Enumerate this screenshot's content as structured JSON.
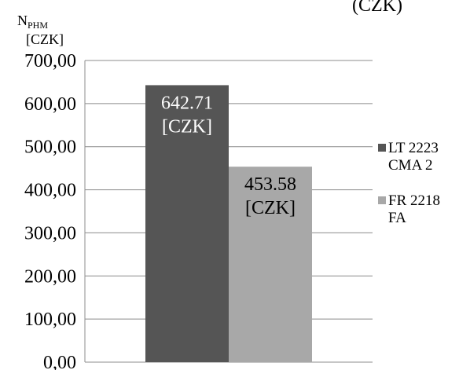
{
  "chart_data": {
    "type": "bar",
    "title": "",
    "title_fragment": "(CZK)",
    "ylabel": {
      "main": "N",
      "subscript": "PHM",
      "unit": "[CZK]"
    },
    "xlabel": "",
    "ylim": [
      0,
      700
    ],
    "y_ticks": [
      {
        "value": 0,
        "label": "0,00"
      },
      {
        "value": 100,
        "label": "100,00"
      },
      {
        "value": 200,
        "label": "200,00"
      },
      {
        "value": 300,
        "label": "300,00"
      },
      {
        "value": 400,
        "label": "400,00"
      },
      {
        "value": 500,
        "label": "500,00"
      },
      {
        "value": 600,
        "label": "600,00"
      },
      {
        "value": 700,
        "label": "700,00"
      }
    ],
    "grid": true,
    "legend_position": "right",
    "series": [
      {
        "name_lines": [
          "LT 2223",
          "CMA 2"
        ],
        "value": 642.71,
        "label_lines": [
          "642.71",
          "[CZK]"
        ],
        "color": "#555555"
      },
      {
        "name_lines": [
          "FR 2218",
          "FA"
        ],
        "value": 453.58,
        "label_lines": [
          "453.58",
          "[CZK]"
        ],
        "color": "#a8a8a8"
      }
    ]
  },
  "colors": {
    "grid": "#8c8c8c",
    "axis": "#8c8c8c",
    "text": "#000000",
    "bar_label_dark": "#ffffff",
    "bar_label_light": "#000000"
  }
}
